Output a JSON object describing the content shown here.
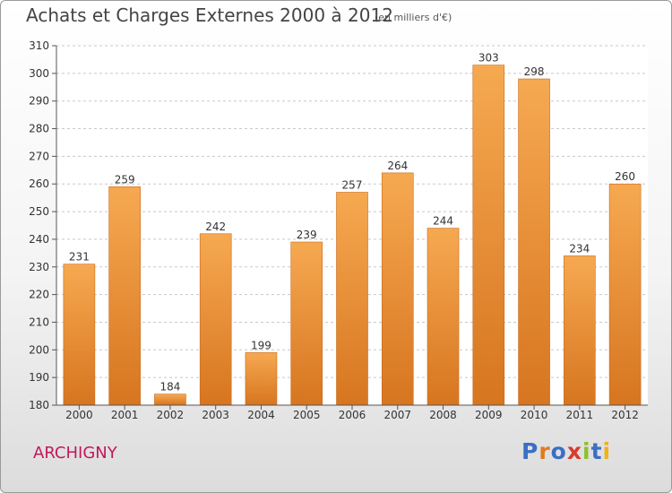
{
  "chart_data": {
    "type": "bar",
    "title": "Achats et Charges Externes 2000 à 2012",
    "subtitle": "(en milliers d'€)",
    "categories": [
      "2000",
      "2001",
      "2002",
      "2003",
      "2004",
      "2005",
      "2006",
      "2007",
      "2008",
      "2009",
      "2010",
      "2011",
      "2012"
    ],
    "values": [
      231,
      259,
      184,
      242,
      199,
      239,
      257,
      264,
      244,
      303,
      298,
      234,
      260
    ],
    "ylim": [
      180,
      310
    ],
    "yticks": [
      180,
      190,
      200,
      210,
      220,
      230,
      240,
      250,
      260,
      270,
      280,
      290,
      300,
      310
    ],
    "xlabel": "",
    "ylabel": "",
    "grid": true,
    "bar_color": "#f2a04c",
    "bar_color_dark": "#d9761f"
  },
  "footer": {
    "commune": "ARCHIGNY",
    "brand": "Proxiti"
  },
  "colors": {
    "commune_text": "#c2185b",
    "brand_letters": [
      "#3b6fc4",
      "#e07b20",
      "#3b6fc4",
      "#d93a2b",
      "#8fbf2f",
      "#3b6fc4",
      "#f0b21a"
    ]
  }
}
